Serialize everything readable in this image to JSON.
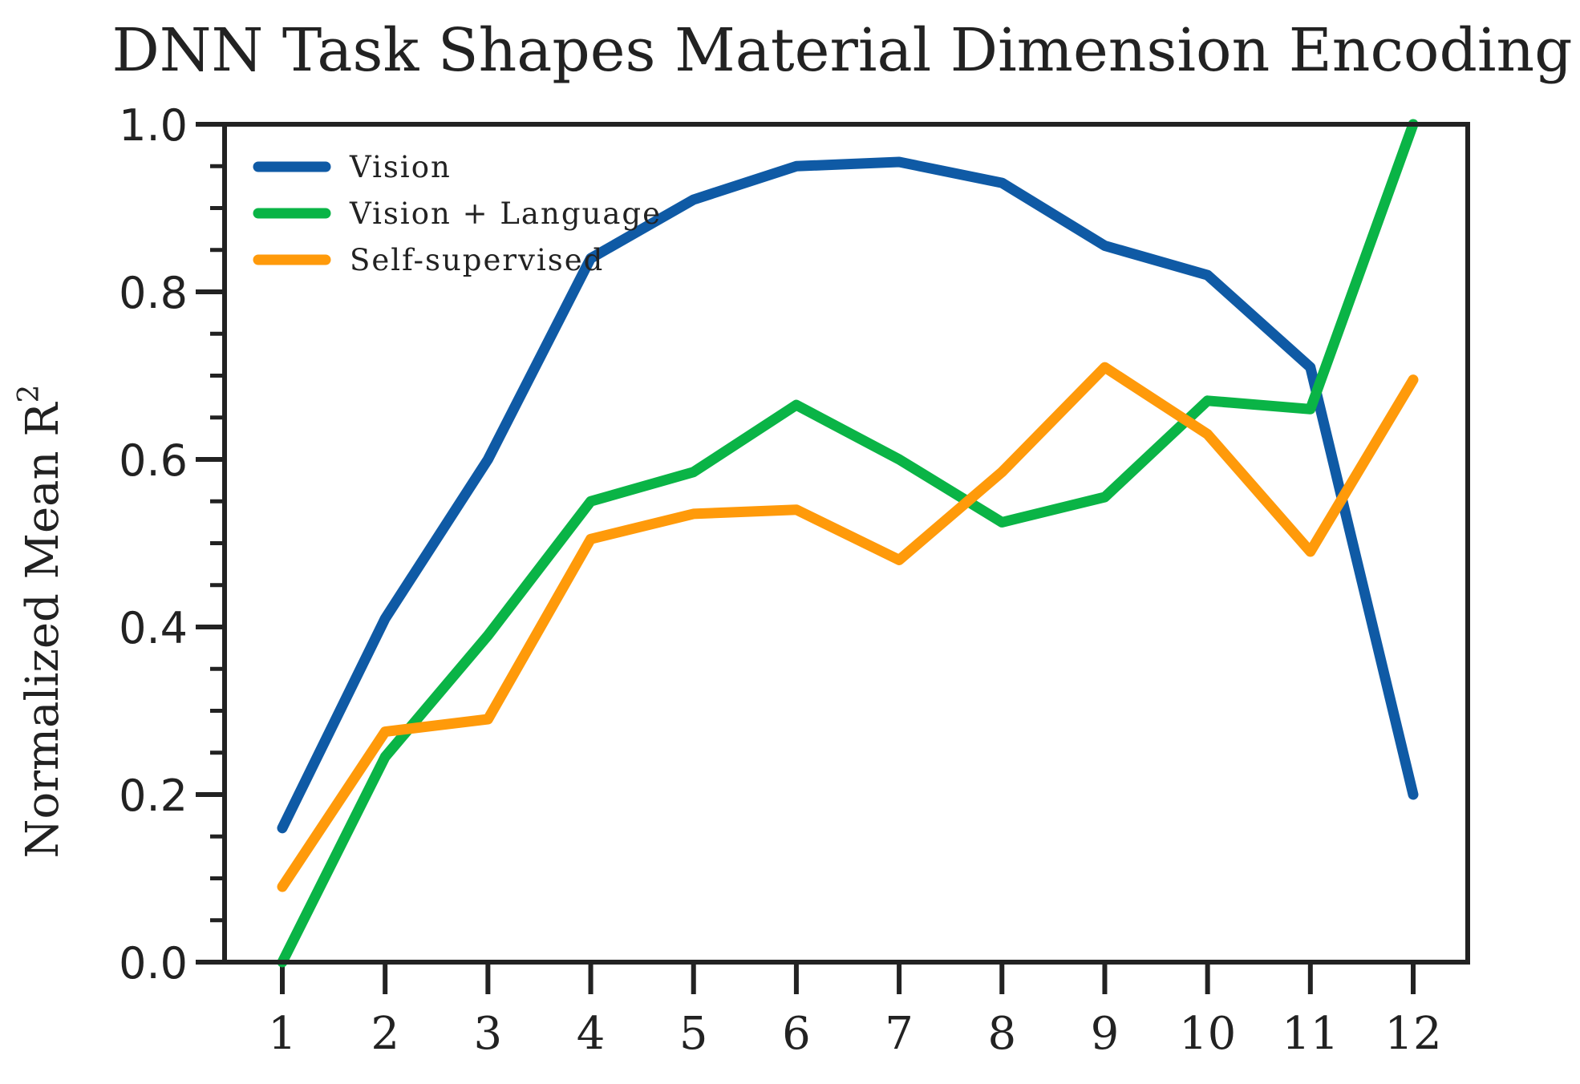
{
  "chart_data": {
    "type": "line",
    "title": "DNN Task Shapes Material Dimension Encoding",
    "xlabel": "",
    "ylabel": "Normalized Mean R",
    "ylabel_superscript": "2",
    "x": [
      "1",
      "2",
      "3",
      "4",
      "5",
      "6",
      "7",
      "8",
      "9",
      "10",
      "11",
      "12"
    ],
    "ylim": [
      0,
      1.0
    ],
    "yticks": [
      "0.0",
      "0.2",
      "0.4",
      "0.6",
      "0.8",
      "1.0"
    ],
    "legend_position": "top-left",
    "grid": false,
    "series": [
      {
        "name": "Vision",
        "color": "#0f5aa5",
        "values": [
          0.16,
          0.41,
          0.6,
          0.84,
          0.91,
          0.95,
          0.955,
          0.93,
          0.855,
          0.82,
          0.71,
          0.2
        ]
      },
      {
        "name": "Vision + Language",
        "color": "#0ab446",
        "values": [
          0.0,
          0.245,
          0.39,
          0.55,
          0.585,
          0.665,
          0.6,
          0.525,
          0.555,
          0.67,
          0.66,
          1.0
        ]
      },
      {
        "name": "Self-supervised",
        "color": "#ff9a0a",
        "values": [
          0.09,
          0.275,
          0.29,
          0.505,
          0.535,
          0.54,
          0.48,
          0.585,
          0.71,
          0.63,
          0.49,
          0.695
        ]
      }
    ]
  }
}
